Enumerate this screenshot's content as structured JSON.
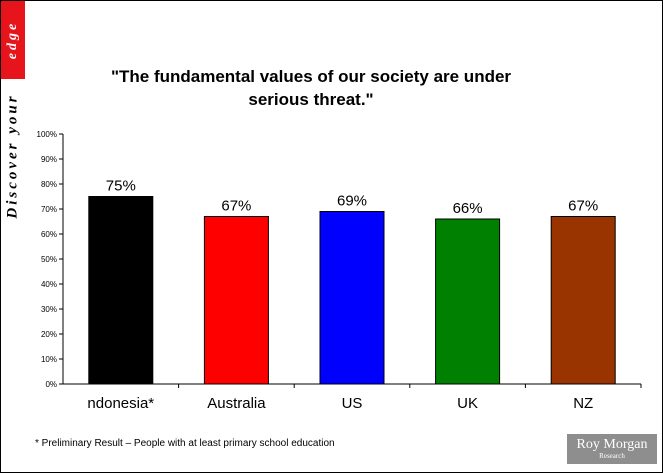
{
  "slide": {
    "side_word_top": "edge",
    "side_word_bottom": "Discover your",
    "footnote": "* Preliminary Result – People with at least primary school education",
    "logo": {
      "name": "Roy Morgan",
      "sub": "Research"
    }
  },
  "chart_data": {
    "type": "bar",
    "title": "\"The fundamental values of our society are under serious threat.\"",
    "categories": [
      "ndonesia*",
      "Australia",
      "US",
      "UK",
      "NZ"
    ],
    "values": [
      75,
      67,
      69,
      66,
      67
    ],
    "data_labels": [
      "75%",
      "67%",
      "69%",
      "66%",
      "67%"
    ],
    "colors": [
      "#000000",
      "#ff0000",
      "#0000ff",
      "#008000",
      "#993300"
    ],
    "ylim": [
      0,
      100
    ],
    "yticks": [
      0,
      10,
      20,
      30,
      40,
      50,
      60,
      70,
      80,
      90,
      100
    ],
    "ytick_labels": [
      "0%",
      "10%",
      "20%",
      "30%",
      "40%",
      "50%",
      "60%",
      "70%",
      "80%",
      "90%",
      "100%"
    ],
    "grid": false,
    "legend": "none"
  }
}
